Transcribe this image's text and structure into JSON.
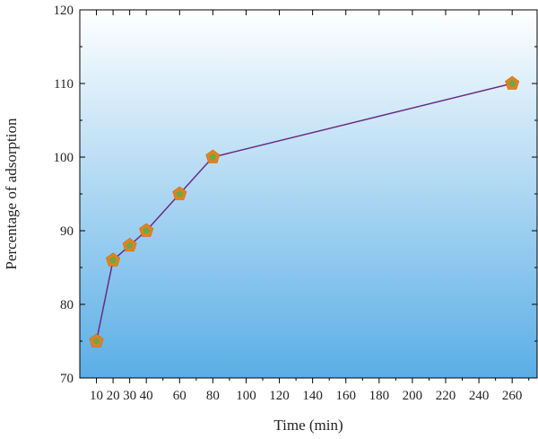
{
  "chart_data": {
    "type": "line",
    "title": "",
    "xlabel": "Time (min)",
    "ylabel": "Percentage of adsorption",
    "x": [
      10,
      20,
      30,
      40,
      60,
      80,
      260
    ],
    "series": [
      {
        "name": "",
        "values": [
          75,
          86,
          88,
          90,
          95,
          100,
          110
        ]
      }
    ],
    "xticks": [
      10,
      20,
      30,
      40,
      60,
      80,
      100,
      120,
      140,
      160,
      180,
      200,
      220,
      240,
      260
    ],
    "yticks": [
      70,
      80,
      90,
      100,
      110,
      120
    ],
    "xlim": [
      0,
      275
    ],
    "ylim": [
      70,
      120
    ],
    "grid": false,
    "legend": "none",
    "colors": {
      "line": "#6a2a86",
      "marker_fill": "#e8801e",
      "marker_inner": "#6ea842",
      "background_top": "#ffffff",
      "background_bottom": "#5aaee6",
      "axis": "#000000"
    }
  }
}
